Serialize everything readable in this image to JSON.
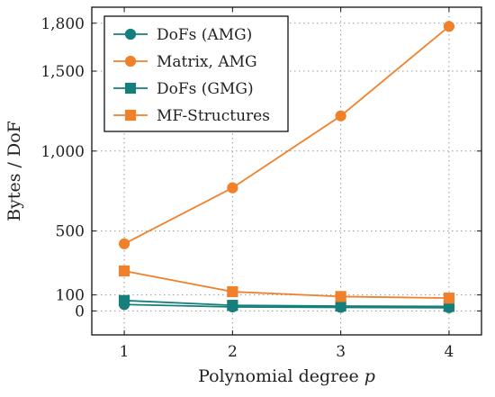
{
  "chart_data": {
    "type": "line",
    "x": [
      1,
      2,
      3,
      4
    ],
    "xlabel": "Polynomial degree",
    "xlabel_var": "p",
    "ylabel": "Bytes / DoF",
    "xlim": [
      0.7,
      4.3
    ],
    "ylim": [
      -150,
      1900
    ],
    "grid": true,
    "legend_position": "top-left",
    "x_ticks": [
      {
        "value": 1,
        "label": "1"
      },
      {
        "value": 2,
        "label": "2"
      },
      {
        "value": 3,
        "label": "3"
      },
      {
        "value": 4,
        "label": "4"
      }
    ],
    "y_ticks": [
      {
        "value": 0,
        "label": "0"
      },
      {
        "value": 100,
        "label": "100"
      },
      {
        "value": 500,
        "label": "500"
      },
      {
        "value": 1000,
        "label": "1,000"
      },
      {
        "value": 1500,
        "label": "1,500"
      },
      {
        "value": 1800,
        "label": "1,800"
      }
    ],
    "series": [
      {
        "name": "DoFs (AMG)",
        "values": [
          40,
          25,
          22,
          20
        ],
        "color": "#177f7b",
        "marker": "circle"
      },
      {
        "name": "Matrix, AMG",
        "values": [
          420,
          770,
          1220,
          1780
        ],
        "color": "#f0812a",
        "marker": "circle"
      },
      {
        "name": "DoFs (GMG)",
        "values": [
          65,
          35,
          30,
          28
        ],
        "color": "#177f7b",
        "marker": "square"
      },
      {
        "name": "MF-Structures",
        "values": [
          250,
          120,
          90,
          80
        ],
        "color": "#f0812a",
        "marker": "square"
      }
    ]
  }
}
